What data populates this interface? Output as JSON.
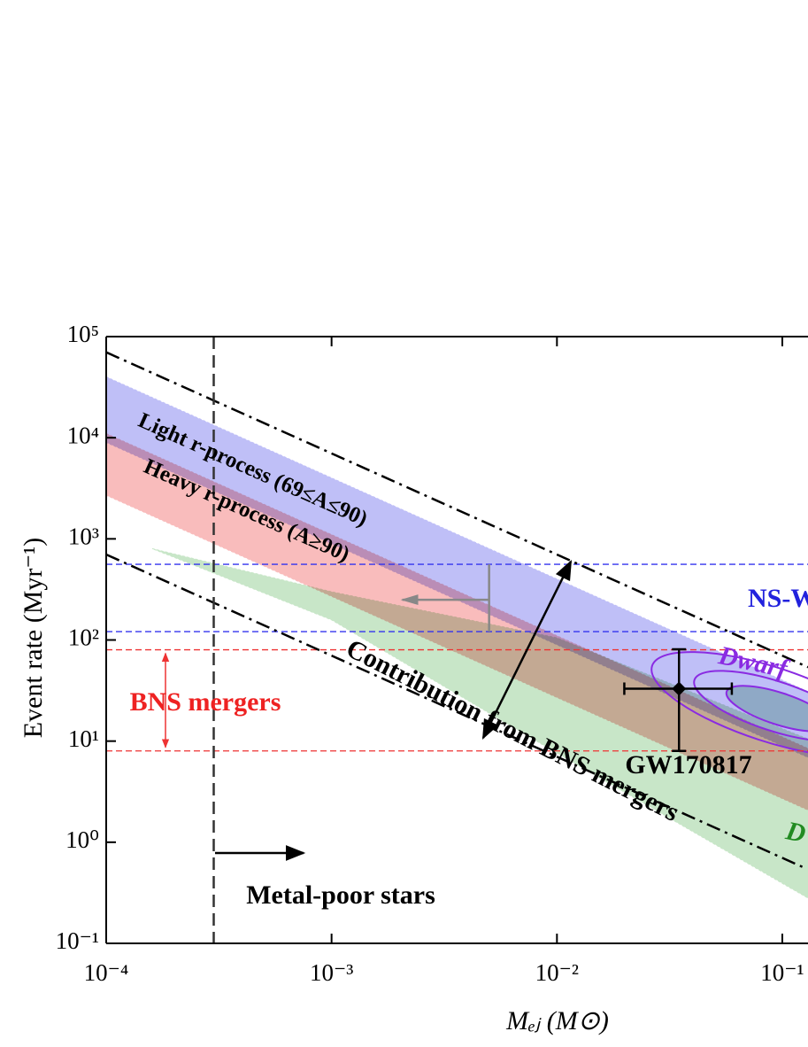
{
  "chart_data": {
    "type": "line",
    "xlabel": "Mₑⱼ (M⊙)",
    "ylabel": "Event rate (Myr⁻¹)",
    "log_x": true,
    "log_y": true,
    "xlim": [
      0.0001,
      0.13
    ],
    "ylim": [
      0.1,
      100000
    ],
    "xticks": [
      {
        "value": 0.0001,
        "label": "10⁻⁴"
      },
      {
        "value": 0.001,
        "label": "10⁻³"
      },
      {
        "value": 0.01,
        "label": "10⁻²"
      },
      {
        "value": 0.1,
        "label": "10⁻¹"
      }
    ],
    "yticks": [
      {
        "value": 0.1,
        "label": "10⁻¹"
      },
      {
        "value": 1,
        "label": "10⁰"
      },
      {
        "value": 10,
        "label": "10¹"
      },
      {
        "value": 100,
        "label": "10²"
      },
      {
        "value": 1000,
        "label": "10³"
      },
      {
        "value": 10000,
        "label": "10⁴"
      },
      {
        "value": 100000,
        "label": "10⁵"
      }
    ],
    "bands": [
      {
        "color": "#c8e6c8",
        "x": [
          0.00016,
          0.001,
          0.01,
          0.13
        ],
        "lower": [
          800,
          158,
          7.6,
          0.28
        ],
        "upper": [
          800,
          300,
          105,
          10.5
        ]
      },
      {
        "color": "#f9bcbc",
        "x": [
          0.0001,
          0.13
        ],
        "lower": [
          2700,
          2.08
        ],
        "upper": [
          11000,
          8.46
        ]
      },
      {
        "color": "#bfbff7",
        "x": [
          0.0001,
          0.13
        ],
        "lower": [
          9000,
          6.9
        ],
        "upper": [
          40000,
          30.8
        ]
      }
    ],
    "lines": [
      {
        "color": "#000000",
        "x": [
          0.0001,
          0.13
        ],
        "values": [
          70000,
          53.8
        ]
      },
      {
        "color": "#000000",
        "x": [
          0.0001,
          0.125
        ],
        "values": [
          700,
          0.56
        ]
      }
    ],
    "rate_ranges": [
      {
        "color": "#3333ee",
        "values": [
          560,
          121
        ]
      },
      {
        "color": "#ee3333",
        "values": [
          80,
          8
        ]
      }
    ],
    "vline": 0.0003,
    "point": {
      "x": 0.0348,
      "y": 33,
      "x_low": 0.0199,
      "x_high": 0.0597,
      "y_low": 8,
      "y_high": 81
    },
    "upper_limit": {
      "x": 0.005,
      "y_range": [
        121,
        560
      ],
      "arrow_x": 0.00206,
      "arrow_y": 250
    },
    "annotations": [
      "Light r-process  (69≤A≤90)",
      "Heavy r-process (A≥90)",
      "Contribution from  BNS mergers",
      "BNS mergers",
      "GW170817",
      "Metal-poor stars",
      "NS-W",
      "Dwarf",
      "D"
    ]
  }
}
